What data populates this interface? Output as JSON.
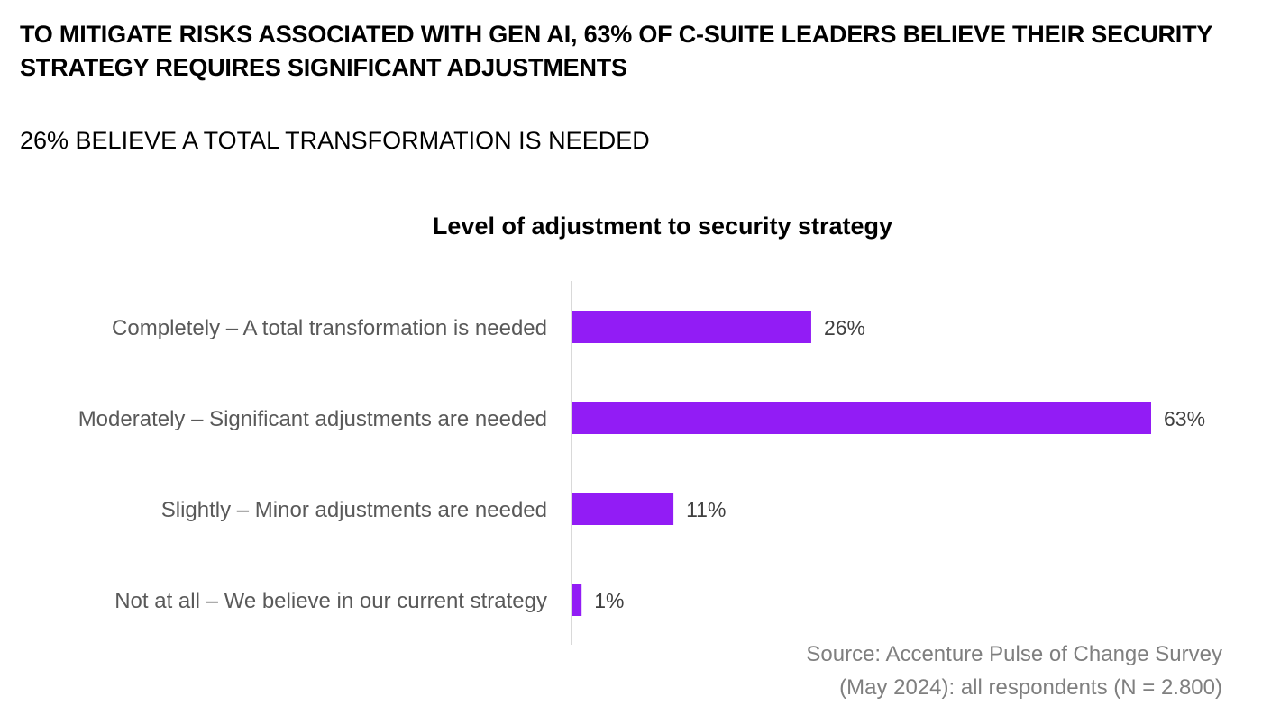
{
  "headline": "TO MITIGATE RISKS ASSOCIATED WITH GEN AI, 63% OF C-SUITE LEADERS BELIEVE THEIR SECURITY STRATEGY REQUIRES SIGNIFICANT ADJUSTMENTS",
  "subheadline": "26% BELIEVE A TOTAL TRANSFORMATION IS NEEDED",
  "source": {
    "line1": "Source: Accenture Pulse of Change Survey",
    "line2": "(May 2024): all respondents (N = 2.800)"
  },
  "chart_data": {
    "type": "bar",
    "orientation": "horizontal",
    "title": "Level of adjustment to security strategy",
    "categories": [
      "Completely – A total transformation is needed",
      "Moderately – Significant adjustments are needed",
      "Slightly – Minor adjustments are needed",
      "Not at all – We believe in our current strategy"
    ],
    "values": [
      26,
      63,
      11,
      1
    ],
    "labels": [
      "26%",
      "63%",
      "11%",
      "1%"
    ],
    "unit": "%",
    "xlim": [
      0,
      63
    ],
    "grid": false,
    "bar_color": "#921CF5"
  }
}
